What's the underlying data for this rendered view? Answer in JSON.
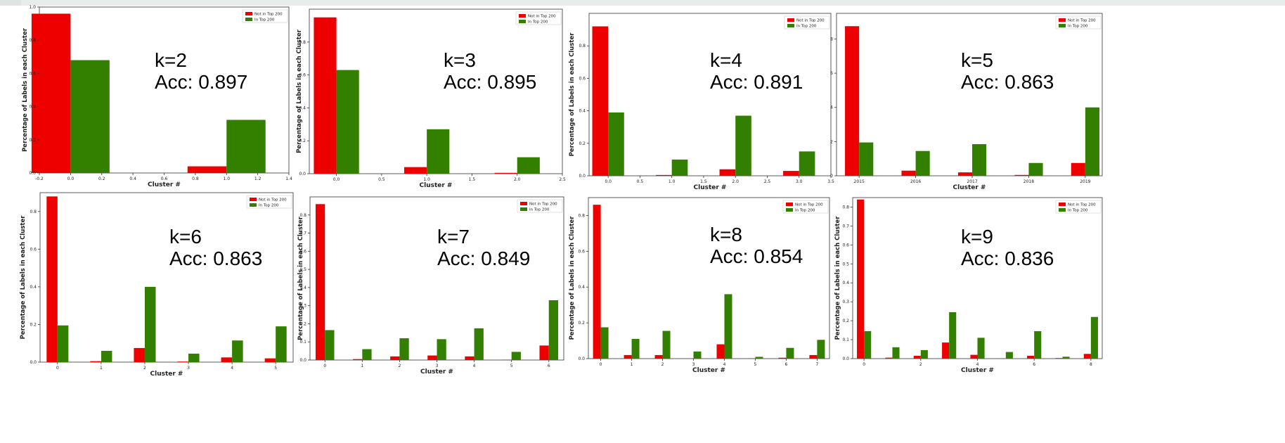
{
  "colors": {
    "not_in_top": "#ee0000",
    "in_top": "#338000"
  },
  "chart_data": [
    {
      "type": "bar",
      "title": "",
      "xlabel": "Cluster #",
      "ylabel": "Percentage of Labels in each Cluster",
      "annotation": [
        "k=2",
        "Acc: 0.897"
      ],
      "legend_position": "top-right",
      "grid": false,
      "xlim": [
        -0.2,
        1.4
      ],
      "ylim": [
        0,
        1.0
      ],
      "xticks": [
        -0.2,
        0.0,
        0.2,
        0.4,
        0.6,
        0.8,
        1.0,
        1.2,
        1.4
      ],
      "xtick_labels": [
        "-0.2",
        "0.0",
        "0.2",
        "0.4",
        "0.6",
        "0.8",
        "1.0",
        "1.2",
        "1.4"
      ],
      "yticks": [
        0.0,
        0.2,
        0.4,
        0.6,
        0.8,
        1.0
      ],
      "ytick_labels": [
        "0.0",
        "0.2",
        "0.4",
        "0.6",
        "0.8",
        "1.0"
      ],
      "bar_width": 0.25,
      "categories": [
        0,
        1
      ],
      "series": [
        {
          "name": "Not in Top 200",
          "values": [
            0.96,
            0.04
          ]
        },
        {
          "name": "In Top 200",
          "values": [
            0.68,
            0.32
          ]
        }
      ]
    },
    {
      "type": "bar",
      "title": "",
      "xlabel": "Cluster #",
      "ylabel": "Percentage of Labels in each Cluster",
      "annotation": [
        "k=3",
        "Acc: 0.895"
      ],
      "legend_position": "top-right",
      "grid": false,
      "xlim": [
        -0.3,
        2.5
      ],
      "ylim": [
        0,
        1.0
      ],
      "xticks": [
        0.0,
        0.5,
        1.0,
        1.5,
        2.0,
        2.5
      ],
      "xtick_labels": [
        "0.0",
        "0.5",
        "1.0",
        "1.5",
        "2.0",
        "2.5"
      ],
      "yticks": [
        0.0,
        0.2,
        0.4,
        0.6,
        0.8
      ],
      "ytick_labels": [
        "0.0",
        "0.2",
        "0.4",
        "0.6",
        "0.8"
      ],
      "bar_width": 0.25,
      "categories": [
        0,
        1,
        2
      ],
      "series": [
        {
          "name": "Not in Top 200",
          "values": [
            0.95,
            0.04,
            0.005
          ]
        },
        {
          "name": "In Top 200",
          "values": [
            0.63,
            0.27,
            0.1
          ]
        }
      ]
    },
    {
      "type": "bar",
      "title": "",
      "xlabel": "Cluster #",
      "ylabel": "Percentage of Labels in each Cluster",
      "annotation": [
        "k=4",
        "Acc: 0.891"
      ],
      "legend_position": "top-right",
      "grid": false,
      "xlim": [
        -0.3,
        3.5
      ],
      "ylim": [
        0,
        1.0
      ],
      "xticks": [
        0.0,
        0.5,
        1.0,
        1.5,
        2.0,
        2.5,
        3.0,
        3.5
      ],
      "xtick_labels": [
        "0.0",
        "0.5",
        "1.0",
        "1.5",
        "2.0",
        "2.5",
        "3.0",
        "3.5"
      ],
      "yticks": [
        0.0,
        0.2,
        0.4,
        0.6,
        0.8
      ],
      "ytick_labels": [
        "0.0",
        "0.2",
        "0.4",
        "0.6",
        "0.8"
      ],
      "bar_width": 0.25,
      "categories": [
        0,
        1,
        2,
        3
      ],
      "series": [
        {
          "name": "Not in Top 200",
          "values": [
            0.92,
            0.005,
            0.04,
            0.03
          ]
        },
        {
          "name": "In Top 200",
          "values": [
            0.39,
            0.1,
            0.37,
            0.15
          ]
        }
      ]
    },
    {
      "type": "bar",
      "title": "",
      "xlabel": "Cluster #",
      "ylabel": "",
      "annotation": [
        "k=5",
        "Acc: 0.863"
      ],
      "legend_position": "top-right",
      "grid": false,
      "xlim": [
        2014.6,
        2019.3
      ],
      "ylim": [
        0,
        9.5
      ],
      "xticks": [
        2015,
        2016,
        2017,
        2018,
        2019
      ],
      "xtick_labels": [
        "2015",
        "2016",
        "2017",
        "2018",
        "2019"
      ],
      "yticks": [
        0,
        2,
        4,
        6,
        8
      ],
      "ytick_labels": [
        "0",
        "2",
        "4",
        "6",
        "8"
      ],
      "bar_width": 0.25,
      "categories": [
        2015,
        2016,
        2017,
        2018,
        2019
      ],
      "series": [
        {
          "name": "Not in Top 200",
          "values": [
            8.75,
            0.3,
            0.2,
            0.05,
            0.75
          ]
        },
        {
          "name": "In Top 200",
          "values": [
            1.95,
            1.45,
            1.85,
            0.75,
            4.0
          ]
        }
      ]
    },
    {
      "type": "bar",
      "title": "",
      "xlabel": "Cluster #",
      "ylabel": "Percentage of Labels in each Cluster",
      "annotation": [
        "k=6",
        "Acc: 0.863"
      ],
      "legend_position": "top-right",
      "grid": false,
      "xlim": [
        -0.4,
        5.4
      ],
      "ylim": [
        0,
        0.9
      ],
      "xticks": [
        0,
        1,
        2,
        3,
        4,
        5
      ],
      "xtick_labels": [
        "0",
        "1",
        "2",
        "3",
        "4",
        "5"
      ],
      "yticks": [
        0.0,
        0.2,
        0.4,
        0.6,
        0.8
      ],
      "ytick_labels": [
        "0.0",
        "0.2",
        "0.4",
        "0.6",
        "0.8"
      ],
      "bar_width": 0.25,
      "categories": [
        0,
        1,
        2,
        3,
        4,
        5
      ],
      "series": [
        {
          "name": "Not in Top 200",
          "values": [
            0.88,
            0.005,
            0.075,
            0.003,
            0.025,
            0.02
          ]
        },
        {
          "name": "In Top 200",
          "values": [
            0.195,
            0.06,
            0.4,
            0.045,
            0.115,
            0.19
          ]
        }
      ]
    },
    {
      "type": "bar",
      "title": "",
      "xlabel": "Cluster #",
      "ylabel": "Percentage of Labels in each Cluster",
      "annotation": [
        "k=7",
        "Acc: 0.849"
      ],
      "legend_position": "top-right",
      "grid": false,
      "xlim": [
        -0.4,
        6.4
      ],
      "ylim": [
        0,
        0.9
      ],
      "xticks": [
        0,
        1,
        2,
        3,
        4,
        5,
        6
      ],
      "xtick_labels": [
        "0",
        "1",
        "2",
        "3",
        "4",
        "5",
        "6"
      ],
      "yticks": [
        0.0,
        0.1,
        0.2,
        0.3,
        0.4,
        0.5,
        0.6,
        0.7,
        0.8
      ],
      "ytick_labels": [
        "0.0",
        "0.1",
        "0.2",
        "0.3",
        "0.4",
        "0.5",
        "0.6",
        "0.7",
        "0.8"
      ],
      "bar_width": 0.25,
      "categories": [
        0,
        1,
        2,
        3,
        4,
        5,
        6
      ],
      "series": [
        {
          "name": "Not in Top 200",
          "values": [
            0.86,
            0.005,
            0.02,
            0.025,
            0.02,
            0.002,
            0.08
          ]
        },
        {
          "name": "In Top 200",
          "values": [
            0.165,
            0.06,
            0.12,
            0.115,
            0.175,
            0.045,
            0.33
          ]
        }
      ]
    },
    {
      "type": "bar",
      "title": "",
      "xlabel": "Cluster #",
      "ylabel": "Percentage of Labels in each Cluster",
      "annotation": [
        "k=8",
        "Acc: 0.854"
      ],
      "legend_position": "top-right",
      "grid": false,
      "xlim": [
        -0.4,
        7.4
      ],
      "ylim": [
        0,
        0.9
      ],
      "xticks": [
        0,
        1,
        2,
        3,
        4,
        5,
        6,
        7
      ],
      "xtick_labels": [
        "0",
        "1",
        "2",
        "3",
        "4",
        "5",
        "6",
        "7"
      ],
      "yticks": [
        0.0,
        0.2,
        0.4,
        0.6,
        0.8
      ],
      "ytick_labels": [
        "0.0",
        "0.2",
        "0.4",
        "0.6",
        "0.8"
      ],
      "bar_width": 0.25,
      "categories": [
        0,
        1,
        2,
        3,
        4,
        5,
        6,
        7
      ],
      "series": [
        {
          "name": "Not in Top 200",
          "values": [
            0.86,
            0.02,
            0.02,
            0.001,
            0.08,
            0.002,
            0.005,
            0.02
          ]
        },
        {
          "name": "In Top 200",
          "values": [
            0.175,
            0.11,
            0.155,
            0.04,
            0.36,
            0.01,
            0.06,
            0.105
          ]
        }
      ]
    },
    {
      "type": "bar",
      "title": "",
      "xlabel": "Cluster #",
      "ylabel": "Percentage of Labels in each Cluster",
      "annotation": [
        "k=9",
        "Acc: 0.836"
      ],
      "legend_position": "top-right",
      "grid": false,
      "xlim": [
        -0.4,
        8.4
      ],
      "ylim": [
        0,
        0.85
      ],
      "xticks": [
        0,
        2,
        4,
        6,
        8
      ],
      "xtick_labels": [
        "0",
        "2",
        "4",
        "6",
        "8"
      ],
      "yticks": [
        0.0,
        0.1,
        0.2,
        0.3,
        0.4,
        0.5,
        0.6,
        0.7,
        0.8
      ],
      "ytick_labels": [
        "0.0",
        "0.1",
        "0.2",
        "0.3",
        "0.4",
        "0.5",
        "0.6",
        "0.7",
        "0.8"
      ],
      "bar_width": 0.25,
      "categories": [
        0,
        1,
        2,
        3,
        4,
        5,
        6,
        7,
        8
      ],
      "series": [
        {
          "name": "Not in Top 200",
          "values": [
            0.84,
            0.005,
            0.015,
            0.085,
            0.02,
            0.001,
            0.015,
            0.003,
            0.025
          ]
        },
        {
          "name": "In Top 200",
          "values": [
            0.145,
            0.06,
            0.045,
            0.245,
            0.11,
            0.035,
            0.145,
            0.01,
            0.22
          ]
        }
      ]
    }
  ]
}
